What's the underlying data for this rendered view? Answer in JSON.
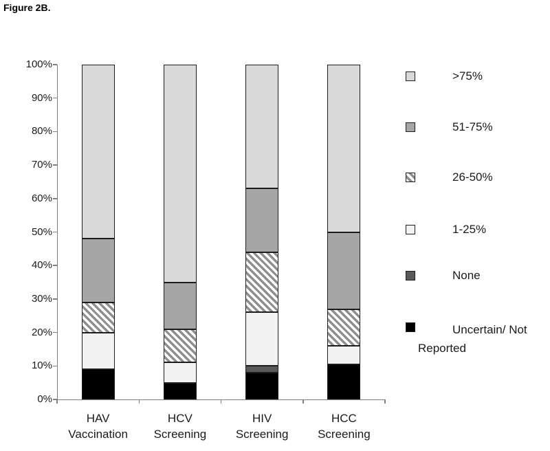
{
  "figure_title": "Figure 2B.",
  "colors": {
    "axis": "#7f7f7f",
    "text": "#1a1a1a",
    "segment_border": "#1c1c1c",
    "background": "#ffffff"
  },
  "chart_data": {
    "type": "bar",
    "stacked": true,
    "title": "Figure 2B.",
    "xlabel": "",
    "ylabel": "",
    "unit": "%",
    "categories": [
      "HAV Vaccination",
      "HCV Screening",
      "HIV Screening",
      "HCC Screening"
    ],
    "category_label_lines": [
      [
        "HAV",
        "Vaccination"
      ],
      [
        "HCV",
        "Screening"
      ],
      [
        "HIV",
        "Screening"
      ],
      [
        "HCC",
        "Screening"
      ]
    ],
    "y_axis": {
      "min": 0,
      "max": 100,
      "tick_step": 10,
      "tick_labels": [
        "0%",
        "10%",
        "20%",
        "30%",
        "40%",
        "50%",
        "60%",
        "70%",
        "80%",
        "90%",
        "100%"
      ],
      "grid": false
    },
    "stack_order_note": "series listed bottom-to-top of each bar",
    "series": [
      {
        "name": "Uncertain/ Not Reported",
        "fill": "#000000",
        "values": [
          9,
          5,
          8,
          10.5
        ]
      },
      {
        "name": "None",
        "fill": "#595959",
        "values": [
          0,
          0,
          2,
          0
        ]
      },
      {
        "name": "1-25%",
        "fill": "#f2f2f2",
        "values": [
          11,
          6,
          16,
          5.5
        ]
      },
      {
        "name": "26-50%",
        "fill": "#ffffff",
        "pattern": "diagonal-hatch",
        "hatch_color": "#8f8f8f",
        "values": [
          9,
          10,
          18,
          11
        ]
      },
      {
        "name": "51-75%",
        "fill": "#a6a6a6",
        "values": [
          19,
          14,
          19,
          23
        ]
      },
      {
        "name": ">75%",
        "fill": "#d9d9d9",
        "values": [
          52,
          65,
          37,
          50
        ]
      }
    ],
    "legend": {
      "position": "right",
      "items_top_to_bottom": [
        ">75%",
        "51-75%",
        "26-50%",
        "1-25%",
        "None",
        "Uncertain/ Not Reported"
      ]
    }
  }
}
